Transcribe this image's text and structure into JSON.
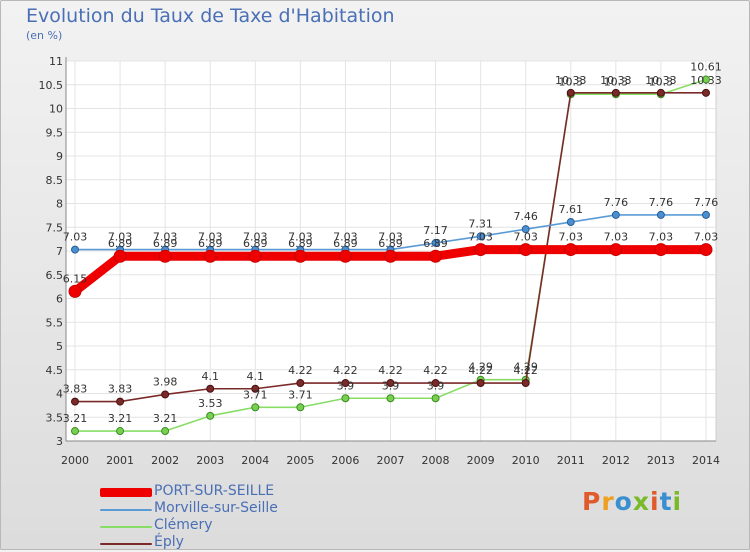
{
  "title": "Evolution du Taux de Taxe d'Habitation",
  "unit": "(en %)",
  "brand": {
    "text": "Proxiti",
    "colors": [
      "#e05a2a",
      "#f0a020",
      "#3a8fd0",
      "#7aba2a",
      "#e05a2a",
      "#3a8fd0",
      "#7aba2a"
    ]
  },
  "chart_data": {
    "type": "line",
    "x": [
      "2000",
      "2001",
      "2002",
      "2003",
      "2004",
      "2005",
      "2006",
      "2007",
      "2008",
      "2009",
      "2010",
      "2011",
      "2012",
      "2013",
      "2014"
    ],
    "ylim": [
      3,
      11
    ],
    "yticks": [
      "3",
      "3.5",
      "4",
      "4.5",
      "5",
      "5.5",
      "6",
      "6.5",
      "7",
      "7.5",
      "8",
      "8.5",
      "9",
      "9.5",
      "10",
      "10.5",
      "11"
    ],
    "grid": true,
    "legend_position": "bottom-left",
    "series": [
      {
        "name": "PORT-SUR-SEILLE",
        "color": "#ee0000",
        "values": [
          6.15,
          6.89,
          6.89,
          6.89,
          6.89,
          6.89,
          6.89,
          6.89,
          6.89,
          7.03,
          7.03,
          7.03,
          7.03,
          7.03,
          7.03
        ],
        "labels": [
          "6.15",
          "6.89",
          "6.89",
          "6.89",
          "6.89",
          "6.89",
          "6.89",
          "6.89",
          "6.89",
          "7.03",
          "7.03",
          "7.03",
          "7.03",
          "7.03",
          "7.03"
        ]
      },
      {
        "name": "Morville-sur-Seille",
        "color": "#5b9bd5",
        "values": [
          7.03,
          7.03,
          7.03,
          7.03,
          7.03,
          7.03,
          7.03,
          7.03,
          7.17,
          7.31,
          7.46,
          7.61,
          7.76,
          7.76,
          7.76
        ],
        "labels": [
          "7.03",
          "7.03",
          "7.03",
          "7.03",
          "7.03",
          "7.03",
          "7.03",
          "7.03",
          "7.17",
          "7.31",
          "7.46",
          "7.61",
          "7.76",
          "7.76",
          "7.76"
        ]
      },
      {
        "name": "Clémery",
        "color": "#88dd66",
        "values": [
          3.21,
          3.21,
          3.21,
          3.53,
          3.71,
          3.71,
          3.9,
          3.9,
          3.9,
          4.29,
          4.29,
          10.3,
          10.3,
          10.3,
          10.61
        ],
        "labels": [
          "3.21",
          "3.21",
          "3.21",
          "3.53",
          "3.71",
          "3.71",
          "3.9",
          "3.9",
          "3.9",
          "4.29",
          "4.29",
          "10.3",
          "10.3",
          "10.3",
          "10.61"
        ]
      },
      {
        "name": "Éply",
        "color": "#7b2a2a",
        "values": [
          3.83,
          3.83,
          3.98,
          4.1,
          4.1,
          4.22,
          4.22,
          4.22,
          4.22,
          4.22,
          4.22,
          10.33,
          10.33,
          10.33,
          10.33
        ],
        "labels": [
          "3.83",
          "3.83",
          "3.98",
          "4.1",
          "4.1",
          "4.22",
          "4.22",
          "4.22",
          "4.22",
          "4.22",
          "4.22",
          "10.33",
          "10.33",
          "10.33",
          "10.33"
        ]
      }
    ]
  }
}
